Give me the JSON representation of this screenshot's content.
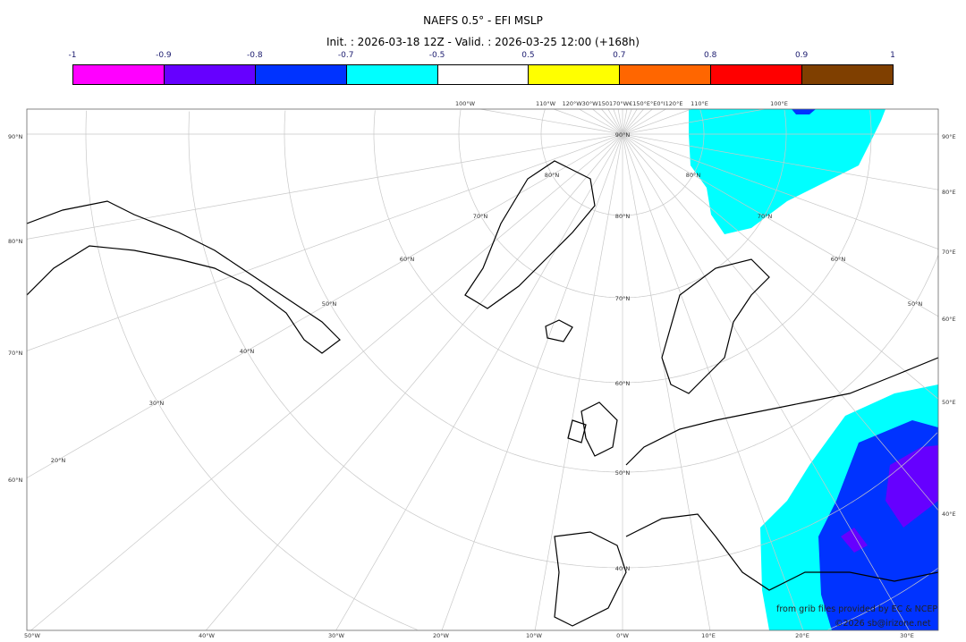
{
  "title": "NAEFS 0.5° - EFI MSLP",
  "subtitle": "Init. : 2026-03-18 12Z - Valid. : 2026-03-25 12:00 (+168h)",
  "colorbar": {
    "labels": [
      "-1",
      "-0.9",
      "-0.8",
      "-0.7",
      "-0.5",
      "0.5",
      "0.7",
      "0.8",
      "0.9",
      "1"
    ],
    "colors": [
      "#ff00ff",
      "#6600ff",
      "#0033ff",
      "#00ffff",
      "#ffffff",
      "#ffff00",
      "#ff6600",
      "#ff0000",
      "#7f3f00"
    ]
  },
  "map": {
    "left_labels": [
      "90°N",
      "80°N",
      "70°N",
      "60°N"
    ],
    "right_labels": [
      "90°E",
      "80°E",
      "70°E",
      "60°E",
      "50°E",
      "40°E"
    ],
    "bottom_labels": [
      "50°W",
      "40°W",
      "30°W",
      "20°W",
      "10°W",
      "0°W",
      "10°E",
      "20°E",
      "30°E"
    ],
    "top_labels": [
      "100°W",
      "110°W",
      "120°W30°W150170°W€150°E°E0°I120°E",
      "110°E",
      "100°E"
    ],
    "inner_labels": [
      "90°N",
      "80°N",
      "70°N",
      "60°N",
      "50°N",
      "40°N",
      "30°N",
      "20°N",
      "80°N",
      "70°N",
      "60°N",
      "50°N",
      "40°N",
      "80°N",
      "70°N",
      "60°N",
      "50°N"
    ]
  },
  "credits": {
    "source": "from grib files provided by EC & NCEP",
    "copyright": "©2026 sb@irizone.net"
  }
}
